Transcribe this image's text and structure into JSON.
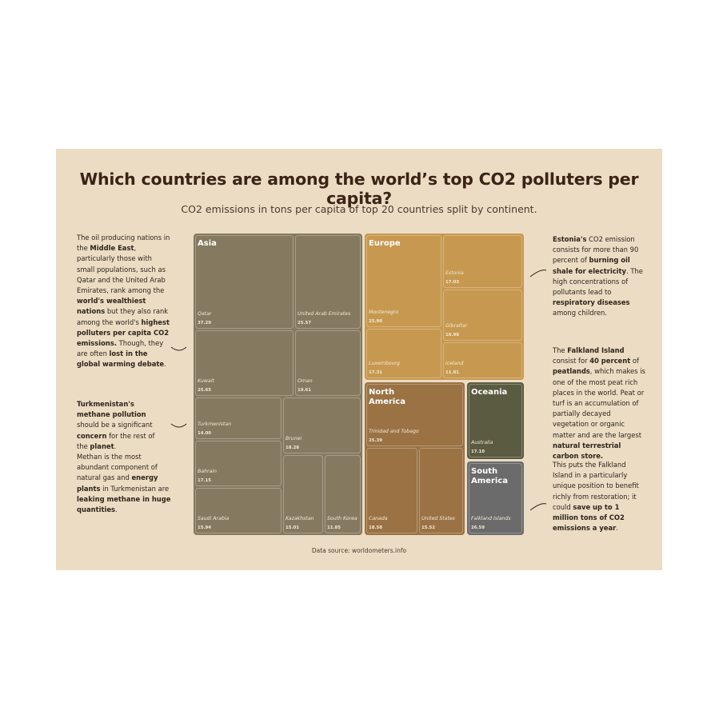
{
  "title": "Which countries are among the world’s top CO2 polluters per capita?",
  "subtitle": "CO2 emissions in tons per capita of top 20 countries split by continent.",
  "source": "Data source: worldometers.info",
  "notes": {
    "middle_east": [
      {
        "t": "The oil producing nations in the "
      },
      {
        "t": "Middle East",
        "b": true
      },
      {
        "t": ", particularly those with small populations, such as Qatar and the United Arab Emirates, rank among the "
      },
      {
        "t": "world's wealthiest nations",
        "b": true
      },
      {
        "t": " but they also rank among the world's "
      },
      {
        "t": "highest polluters per capita CO2 emissions.",
        "b": true
      },
      {
        "t": " Though, they are often "
      },
      {
        "t": "lost in the global warming debate",
        "b": true
      },
      {
        "t": "."
      }
    ],
    "turkmenistan": [
      {
        "t": "Turkmenistan's  methane pollution",
        "b": true
      },
      {
        "t": " should be a significant "
      },
      {
        "t": "concern",
        "b": true
      },
      {
        "t": " for the rest of the "
      },
      {
        "t": "planet",
        "b": true
      },
      {
        "t": "."
      }
    ],
    "methane": [
      {
        "t": "Methan is the most abundant component of natural gas and "
      },
      {
        "t": "energy plants",
        "b": true
      },
      {
        "t": " in Turkmenistan are  "
      },
      {
        "t": "leaking methane in huge quantities",
        "b": true
      },
      {
        "t": "."
      }
    ],
    "estonia": [
      {
        "t": "Estonia's",
        "b": true
      },
      {
        "t": " CO2 emission consists for more than 90 percent of "
      },
      {
        "t": "burning oil shale for electricity",
        "b": true
      },
      {
        "t": ". The high concentrations of pollutants lead to "
      },
      {
        "t": "respiratory diseases",
        "b": true
      },
      {
        "t": " among children."
      }
    ],
    "falkland": [
      {
        "t": "The "
      },
      {
        "t": "Falkland Island",
        "b": true
      },
      {
        "t": " consist for "
      },
      {
        "t": "40 percent",
        "b": true
      },
      {
        "t": " of "
      },
      {
        "t": "peatlands",
        "b": true
      },
      {
        "t": ", which makes is one of the most peat rich places in the world. Peat or turf is an accumulation of partially decayed vegetation or organic matter and are the largest "
      },
      {
        "t": "natural terrestrial carbon store.",
        "b": true
      }
    ],
    "falkland2": [
      {
        "t": "This puts the Falkland Island in a particularly unique position to benefit richly from restoration; it could "
      },
      {
        "t": "save up to 1 million tons of CO2 emissions a year",
        "b": true
      },
      {
        "t": "."
      }
    ]
  },
  "colors": {
    "Asia": "#85795f",
    "Europe": "#c7984f",
    "North America": "#9a7244",
    "Oceania": "#5a5b40",
    "South America": "#6b6b6b",
    "background": "#ecdcc4",
    "title": "#3a2416"
  },
  "chart_data": {
    "type": "treemap",
    "title": "Which countries are among the world’s top CO2 polluters per capita?",
    "unit": "tons per capita",
    "groups": [
      {
        "name": "Asia",
        "items": [
          {
            "label": "Qatar",
            "value": 37.29
          },
          {
            "label": "United Arab Emirates",
            "value": 25.57
          },
          {
            "label": "Kuwait",
            "value": 25.65
          },
          {
            "label": "Oman",
            "value": 19.61
          },
          {
            "label": "Turkmenistan",
            "value": 14.0
          },
          {
            "label": "Bahrain",
            "value": 17.15
          },
          {
            "label": "Brunei",
            "value": 18.28
          },
          {
            "label": "Saudi Arabia",
            "value": 15.94
          },
          {
            "label": "Kazakhstan",
            "value": 15.01
          },
          {
            "label": "South Korea",
            "value": 11.85
          }
        ]
      },
      {
        "name": "Europe",
        "items": [
          {
            "label": "Montenegro",
            "value": 25.9
          },
          {
            "label": "Estonia",
            "value": 17.03
          },
          {
            "label": "Gibraltar",
            "value": 16.98
          },
          {
            "label": "Luxembourg",
            "value": 17.31
          },
          {
            "label": "Iceland",
            "value": 11.81
          }
        ]
      },
      {
        "name": "North America",
        "items": [
          {
            "label": "Trinidad and Tobago",
            "value": 25.39
          },
          {
            "label": "Canada",
            "value": 18.58
          },
          {
            "label": "United States",
            "value": 15.52
          }
        ]
      },
      {
        "name": "Oceania",
        "items": [
          {
            "label": "Australia",
            "value": 17.1
          }
        ]
      },
      {
        "name": "South America",
        "items": [
          {
            "label": "Falkland Islands",
            "value": 26.59
          }
        ]
      }
    ]
  }
}
